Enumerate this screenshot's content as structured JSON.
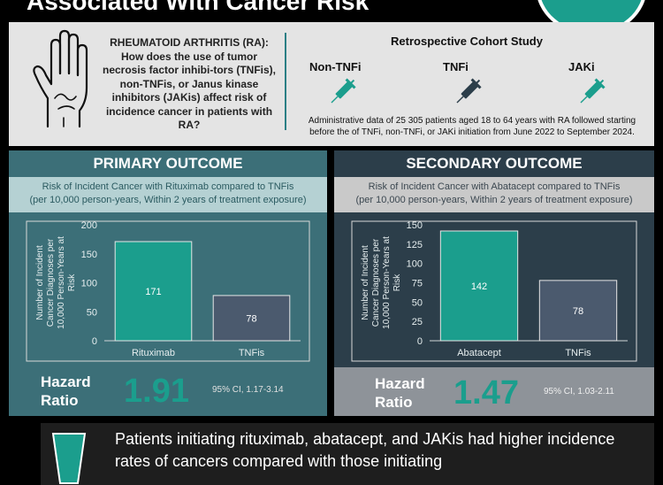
{
  "header": {
    "title": "Associated With Cancer Risk"
  },
  "question": "RHEUMATOID ARTHRITIS (RA): How does the use of tumor necrosis factor inhibi-tors (TNFis), non-TNFis, or Janus kinase inhibitors (JAKis) affect risk of incidence cancer in patients with RA?",
  "study": {
    "title": "Retrospective Cohort Study",
    "groups": [
      "Non-TNFi",
      "TNFi",
      "JAKi"
    ],
    "description": "Administrative data of 25 305 patients aged 18 to 64 years with RA followed starting before the of TNFi, non-TNFi, or JAKi initiation from June 2022 to September 2024."
  },
  "primary": {
    "heading": "PRIMARY OUTCOME",
    "subtitle_line1": "Risk of Incident Cancer with Rituximab compared to TNFis",
    "subtitle_line2": "(per 10,000 person-years, Within 2 years of treatment exposure)",
    "hazard_label_1": "Hazard",
    "hazard_label_2": "Ratio",
    "hazard_value": "1.91",
    "ci": "95% CI, 1.17-3.14"
  },
  "secondary": {
    "heading": "SECONDARY OUTCOME",
    "subtitle_line1": "Risk of Incident Cancer with Abatacept compared to TNFis",
    "subtitle_line2": "(per 10,000 person-years, Within 2 years of treatment exposure)",
    "hazard_label_1": "Hazard",
    "hazard_label_2": "Ratio",
    "hazard_value": "1.47",
    "ci": "95% CI, 1.03-2.11"
  },
  "conclusion": "Patients initiating rituximab, abatacept, and JAKis had higher incidence rates of cancers compared with those initiating",
  "colors": {
    "teal": "#1b9e8d",
    "slate": "#4b5a6e",
    "primary_bg": "#3c6f78",
    "secondary_bg": "#2c3e4a"
  },
  "chart_data": [
    {
      "type": "bar",
      "categories": [
        "Rituximab",
        "TNFis"
      ],
      "values": [
        171,
        78
      ],
      "ylabel": "Number of Incident Cancer Diagnoses per 10,000 Person-Years at Risk",
      "ylim": [
        0,
        200
      ],
      "yticks": [
        0,
        50,
        100,
        150,
        200
      ],
      "bar_colors": [
        "#1b9e8d",
        "#4b5a6e"
      ]
    },
    {
      "type": "bar",
      "categories": [
        "Abatacept",
        "TNFis"
      ],
      "values": [
        142,
        78
      ],
      "ylabel": "Number of Incident Cancer Diagnoses per 10,000 Person-Years at Risk",
      "ylim": [
        0,
        150
      ],
      "yticks": [
        0,
        25,
        50,
        75,
        100,
        125,
        150
      ],
      "bar_colors": [
        "#1b9e8d",
        "#4b5a6e"
      ]
    }
  ]
}
